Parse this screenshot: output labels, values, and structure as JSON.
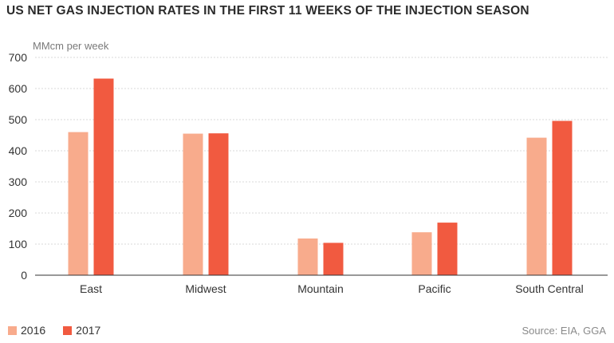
{
  "header": {
    "title": "US NET GAS INJECTION RATES IN THE FIRST 11 WEEKS OF THE INJECTION SEASON",
    "unit_label": "MMcm per week"
  },
  "footer": {
    "source": "Source: EIA, GGA"
  },
  "colors": {
    "series_2016": "#f8ab8c",
    "series_2017": "#f15a40",
    "grid": "#d9d9d9",
    "axis": "#333333"
  },
  "chart_data": {
    "type": "bar",
    "title": "US NET GAS INJECTION RATES IN THE FIRST 11 WEEKS OF THE INJECTION SEASON",
    "ylabel": "MMcm per week",
    "xlabel": "",
    "categories": [
      "East",
      "Midwest",
      "Mountain",
      "Pacific",
      "South Central"
    ],
    "series": [
      {
        "name": "2016",
        "values": [
          460,
          455,
          118,
          138,
          442
        ]
      },
      {
        "name": "2017",
        "values": [
          632,
          456,
          104,
          169,
          496
        ]
      }
    ],
    "ylim": [
      0,
      700
    ],
    "yticks": [
      0,
      100,
      200,
      300,
      400,
      500,
      600,
      700
    ],
    "grid": true,
    "legend": "bottom-left"
  }
}
